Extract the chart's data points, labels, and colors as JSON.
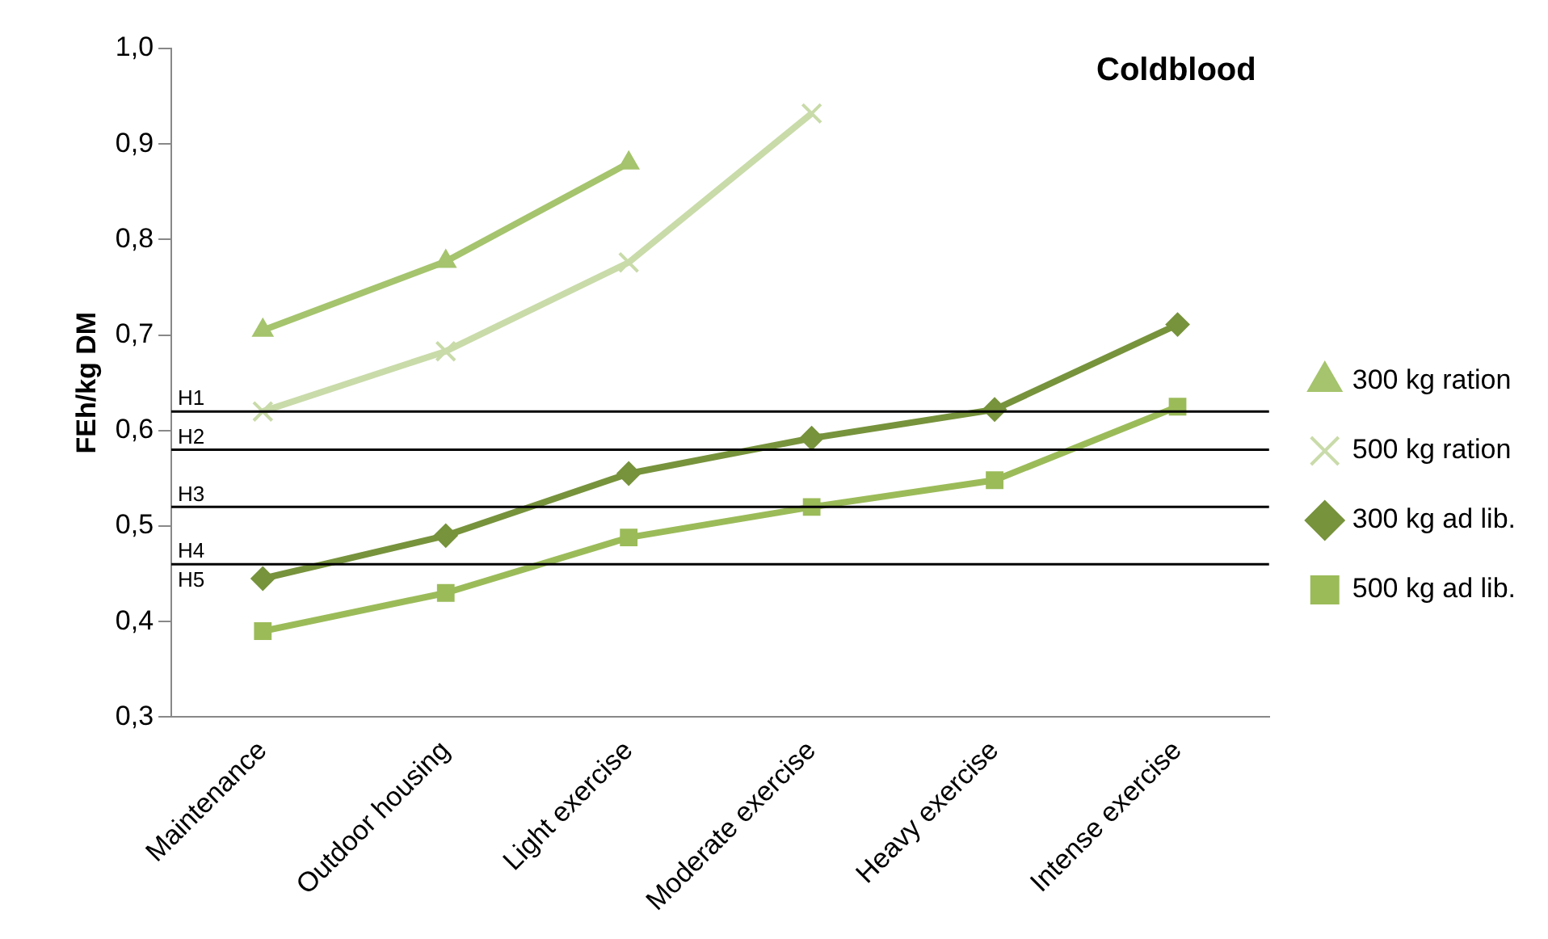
{
  "chart_data": {
    "type": "line",
    "title": "Coldblood",
    "ylabel": "FEh/kg DM",
    "categories": [
      "Maintenance",
      "Outdoor housing",
      "Light exercise",
      "Moderate exercise",
      "Heavy exercise",
      "Intense exercise"
    ],
    "series": [
      {
        "name": "300 kg ration",
        "color": "#a5c46d",
        "marker": "triangle",
        "values": [
          0.705,
          0.777,
          0.88,
          null,
          null,
          null
        ]
      },
      {
        "name": "500 kg ration",
        "color": "#c9dba9",
        "marker": "cross",
        "values": [
          0.62,
          0.683,
          0.776,
          0.932,
          null,
          null
        ]
      },
      {
        "name": "300 kg ad lib.",
        "color": "#77933c",
        "marker": "diamond",
        "values": [
          0.445,
          0.49,
          0.555,
          0.592,
          0.622,
          0.711
        ]
      },
      {
        "name": "500 kg ad lib.",
        "color": "#9bbb59",
        "marker": "square",
        "values": [
          0.39,
          0.43,
          0.488,
          0.52,
          0.548,
          0.625
        ]
      }
    ],
    "ylim": [
      0.3,
      1.0
    ],
    "yticks": [
      {
        "value": 0.3,
        "label": "0,3"
      },
      {
        "value": 0.4,
        "label": "0,4"
      },
      {
        "value": 0.5,
        "label": "0,5"
      },
      {
        "value": 0.6,
        "label": "0,6"
      },
      {
        "value": 0.7,
        "label": "0,7"
      },
      {
        "value": 0.8,
        "label": "0,8"
      },
      {
        "value": 0.9,
        "label": "0,9"
      },
      {
        "value": 1.0,
        "label": "1,0"
      }
    ],
    "ref_lines": [
      {
        "axis": "y",
        "value": 0.62,
        "label": "H1",
        "color": "#000000"
      },
      {
        "axis": "y",
        "value": 0.58,
        "label": "H2",
        "color": "#000000"
      },
      {
        "axis": "y",
        "value": 0.52,
        "label": "H3",
        "color": "#000000"
      },
      {
        "axis": "y",
        "value": 0.46,
        "label": "H4",
        "color": "#000000"
      }
    ],
    "annotations": [
      "H5"
    ],
    "grid": false,
    "legend": "right",
    "line_style": "solid"
  }
}
